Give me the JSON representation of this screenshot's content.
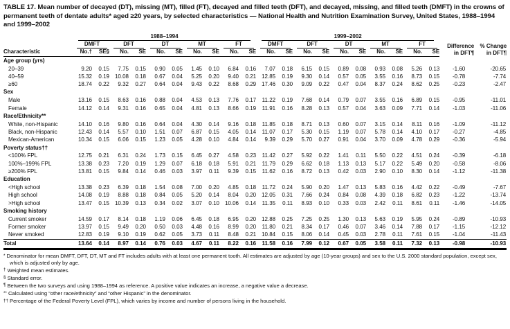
{
  "title": "TABLE 17. Mean number of decayed (DT), missing (MT), filled (FT), decayed and filled teeth (DFT), and decayed, missing, and filled teeth (DMFT) in the crowns of permanent teeth of dentate adults* aged ≥20 years, by selected characteristics — National Health and Nutrition Examination Survey, United States, 1988–1994 and 1999–2002",
  "table": {
    "characteristic_header": "Characteristic",
    "col_groups": [
      "1988–1994",
      "1999–2002"
    ],
    "measures": [
      "DMFT",
      "DFT",
      "DT",
      "MT",
      "FT"
    ],
    "subheaders": {
      "no_first": "No.†",
      "se_first": "SE§",
      "no": "No.",
      "se": "SE"
    },
    "diff_header_l1": "Difference",
    "diff_header_l2": "in DFT¶",
    "pct_header_l1": "% Change",
    "pct_header_l2": "in DFT¶",
    "sections": [
      {
        "label": "Age group (yrs)",
        "rows": [
          {
            "label": "20–39",
            "values": [
              "9.20",
              "0.15",
              "7.75",
              "0.15",
              "0.90",
              "0.05",
              "1.45",
              "0.10",
              "6.84",
              "0.16",
              "7.07",
              "0.18",
              "6.15",
              "0.15",
              "0.89",
              "0.08",
              "0.93",
              "0.08",
              "5.26",
              "0.13"
            ],
            "diff": "-1.60",
            "pct": "-20.65"
          },
          {
            "label": "40–59",
            "values": [
              "15.32",
              "0.19",
              "10.08",
              "0.18",
              "0.67",
              "0.04",
              "5.25",
              "0.20",
              "9.40",
              "0.21",
              "12.85",
              "0.19",
              "9.30",
              "0.14",
              "0.57",
              "0.05",
              "3.55",
              "0.16",
              "8.73",
              "0.15"
            ],
            "diff": "-0.78",
            "pct": "-7.74"
          },
          {
            "label": "≥60",
            "values": [
              "18.74",
              "0.22",
              "9.32",
              "0.27",
              "0.64",
              "0.04",
              "9.43",
              "0.22",
              "8.68",
              "0.29",
              "17.46",
              "0.30",
              "9.09",
              "0.22",
              "0.47",
              "0.04",
              "8.37",
              "0.24",
              "8.62",
              "0.25"
            ],
            "diff": "-0.23",
            "pct": "-2.47"
          }
        ]
      },
      {
        "label": "Sex",
        "rows": [
          {
            "label": "Male",
            "values": [
              "13.16",
              "0.15",
              "8.63",
              "0.16",
              "0.88",
              "0.04",
              "4.53",
              "0.13",
              "7.76",
              "0.17",
              "11.22",
              "0.19",
              "7.68",
              "0.14",
              "0.79",
              "0.07",
              "3.55",
              "0.16",
              "6.89",
              "0.15"
            ],
            "diff": "-0.95",
            "pct": "-11.01"
          },
          {
            "label": "Female",
            "values": [
              "14.12",
              "0.14",
              "9.31",
              "0.16",
              "0.65",
              "0.04",
              "4.81",
              "0.13",
              "8.66",
              "0.19",
              "11.91",
              "0.16",
              "8.28",
              "0.13",
              "0.57",
              "0.04",
              "3.63",
              "0.09",
              "7.71",
              "0.14"
            ],
            "diff": "-1.03",
            "pct": "-11.06"
          }
        ]
      },
      {
        "label": "Race/Ethnicity**",
        "rows": [
          {
            "label": "White, non-Hispanic",
            "values": [
              "14.10",
              "0.16",
              "9.80",
              "0.16",
              "0.64",
              "0.04",
              "4.30",
              "0.14",
              "9.16",
              "0.18",
              "11.85",
              "0.18",
              "8.71",
              "0.13",
              "0.60",
              "0.07",
              "3.15",
              "0.14",
              "8.11",
              "0.16"
            ],
            "diff": "-1.09",
            "pct": "-11.12"
          },
          {
            "label": "Black, non-Hispanic",
            "values": [
              "12.43",
              "0.14",
              "5.57",
              "0.10",
              "1.51",
              "0.07",
              "6.87",
              "0.15",
              "4.05",
              "0.14",
              "11.07",
              "0.17",
              "5.30",
              "0.15",
              "1.19",
              "0.07",
              "5.78",
              "0.14",
              "4.10",
              "0.17"
            ],
            "diff": "-0.27",
            "pct": "-4.85"
          },
          {
            "label": "Mexican-American",
            "values": [
              "10.34",
              "0.15",
              "6.06",
              "0.15",
              "1.23",
              "0.05",
              "4.28",
              "0.10",
              "4.84",
              "0.14",
              "9.39",
              "0.29",
              "5.70",
              "0.27",
              "0.91",
              "0.04",
              "3.70",
              "0.09",
              "4.78",
              "0.29"
            ],
            "diff": "-0.36",
            "pct": "-5.94"
          }
        ]
      },
      {
        "label": "Poverty status††",
        "rows": [
          {
            "label": "<100% FPL",
            "values": [
              "12.75",
              "0.21",
              "6.31",
              "0.24",
              "1.73",
              "0.15",
              "6.45",
              "0.27",
              "4.58",
              "0.23",
              "11.42",
              "0.27",
              "5.92",
              "0.22",
              "1.41",
              "0.11",
              "5.50",
              "0.22",
              "4.51",
              "0.24"
            ],
            "diff": "-0.39",
            "pct": "-6.18"
          },
          {
            "label": "100%–199% FPL",
            "values": [
              "13.38",
              "0.23",
              "7.20",
              "0.19",
              "1.29",
              "0.07",
              "6.18",
              "0.18",
              "5.91",
              "0.21",
              "11.79",
              "0.29",
              "6.62",
              "0.18",
              "1.13",
              "0.13",
              "5.17",
              "0.22",
              "5.49",
              "0.20"
            ],
            "diff": "-0.58",
            "pct": "-8.06"
          },
          {
            "label": "≥200% FPL",
            "values": [
              "13.81",
              "0.15",
              "9.84",
              "0.14",
              "0.46",
              "0.03",
              "3.97",
              "0.11",
              "9.39",
              "0.15",
              "11.62",
              "0.16",
              "8.72",
              "0.13",
              "0.42",
              "0.03",
              "2.90",
              "0.10",
              "8.30",
              "0.14"
            ],
            "diff": "-1.12",
            "pct": "-11.38"
          }
        ]
      },
      {
        "label": "Education",
        "rows": [
          {
            "label": "<High school",
            "values": [
              "13.38",
              "0.23",
              "6.39",
              "0.18",
              "1.54",
              "0.08",
              "7.00",
              "0.20",
              "4.85",
              "0.18",
              "11.72",
              "0.24",
              "5.90",
              "0.20",
              "1.47",
              "0.13",
              "5.83",
              "0.16",
              "4.42",
              "0.22"
            ],
            "diff": "-0.49",
            "pct": "-7.67"
          },
          {
            "label": "High school",
            "values": [
              "14.08",
              "0.19",
              "8.88",
              "0.18",
              "0.84",
              "0.05",
              "5.20",
              "0.14",
              "8.04",
              "0.20",
              "12.05",
              "0.31",
              "7.66",
              "0.24",
              "0.84",
              "0.08",
              "4.39",
              "0.18",
              "6.82",
              "0.23"
            ],
            "diff": "-1.22",
            "pct": "-13.74"
          },
          {
            "label": ">High school",
            "values": [
              "13.47",
              "0.15",
              "10.39",
              "0.13",
              "0.34",
              "0.02",
              "3.07",
              "0.10",
              "10.06",
              "0.14",
              "11.35",
              "0.11",
              "8.93",
              "0.10",
              "0.33",
              "0.03",
              "2.42",
              "0.11",
              "8.61",
              "0.11"
            ],
            "diff": "-1.46",
            "pct": "-14.05"
          }
        ]
      },
      {
        "label": "Smoking history",
        "rows": [
          {
            "label": "Current smoker",
            "values": [
              "14.59",
              "0.17",
              "8.14",
              "0.18",
              "1.19",
              "0.06",
              "6.45",
              "0.18",
              "6.95",
              "0.20",
              "12.88",
              "0.25",
              "7.25",
              "0.25",
              "1.30",
              "0.13",
              "5.63",
              "0.19",
              "5.95",
              "0.24"
            ],
            "diff": "-0.89",
            "pct": "-10.93"
          },
          {
            "label": "Former smoker",
            "values": [
              "13.97",
              "0.15",
              "9.49",
              "0.20",
              "0.50",
              "0.03",
              "4.48",
              "0.16",
              "8.99",
              "0.20",
              "11.80",
              "0.21",
              "8.34",
              "0.17",
              "0.46",
              "0.07",
              "3.46",
              "0.14",
              "7.88",
              "0.17"
            ],
            "diff": "-1.15",
            "pct": "-12.12"
          },
          {
            "label": "Never smoked",
            "values": [
              "12.83",
              "0.19",
              "9.10",
              "0.19",
              "0.62",
              "0.05",
              "3.73",
              "0.11",
              "8.48",
              "0.21",
              "10.84",
              "0.15",
              "8.06",
              "0.14",
              "0.45",
              "0.03",
              "2.78",
              "0.11",
              "7.61",
              "0.15"
            ],
            "diff": "-1.04",
            "pct": "-11.43"
          }
        ]
      }
    ],
    "total_row": {
      "label": "Total",
      "values": [
        "13.64",
        "0.14",
        "8.97",
        "0.14",
        "0.76",
        "0.03",
        "4.67",
        "0.11",
        "8.22",
        "0.16",
        "11.58",
        "0.16",
        "7.99",
        "0.12",
        "0.67",
        "0.05",
        "3.58",
        "0.11",
        "7.32",
        "0.13"
      ],
      "diff": "-0.98",
      "pct": "-10.93"
    }
  },
  "footnotes": [
    {
      "marker": "*",
      "text": "Denominator for mean DMFT, DFT, DT, MT and FT includes adults with at least one permanent tooth. All estimates are adjusted by age (10-year groups) and sex to the U.S. 2000 standard population, except sex, which is adjusted only by age."
    },
    {
      "marker": "†",
      "text": "Weighted mean estimates."
    },
    {
      "marker": "§",
      "text": "Standard error."
    },
    {
      "marker": "¶",
      "text": "Between the two surveys and using 1988–1994 as reference. A positive value indicates an increase, a negative value a decrease."
    },
    {
      "marker": "**",
      "text": "Calculated using “other race/ethnicity” and “other Hispanic” in the denominator."
    },
    {
      "marker": "††",
      "text": "Percentage of the Federal Poverty Level (FPL), which varies by income and number of persons living in the household."
    }
  ]
}
